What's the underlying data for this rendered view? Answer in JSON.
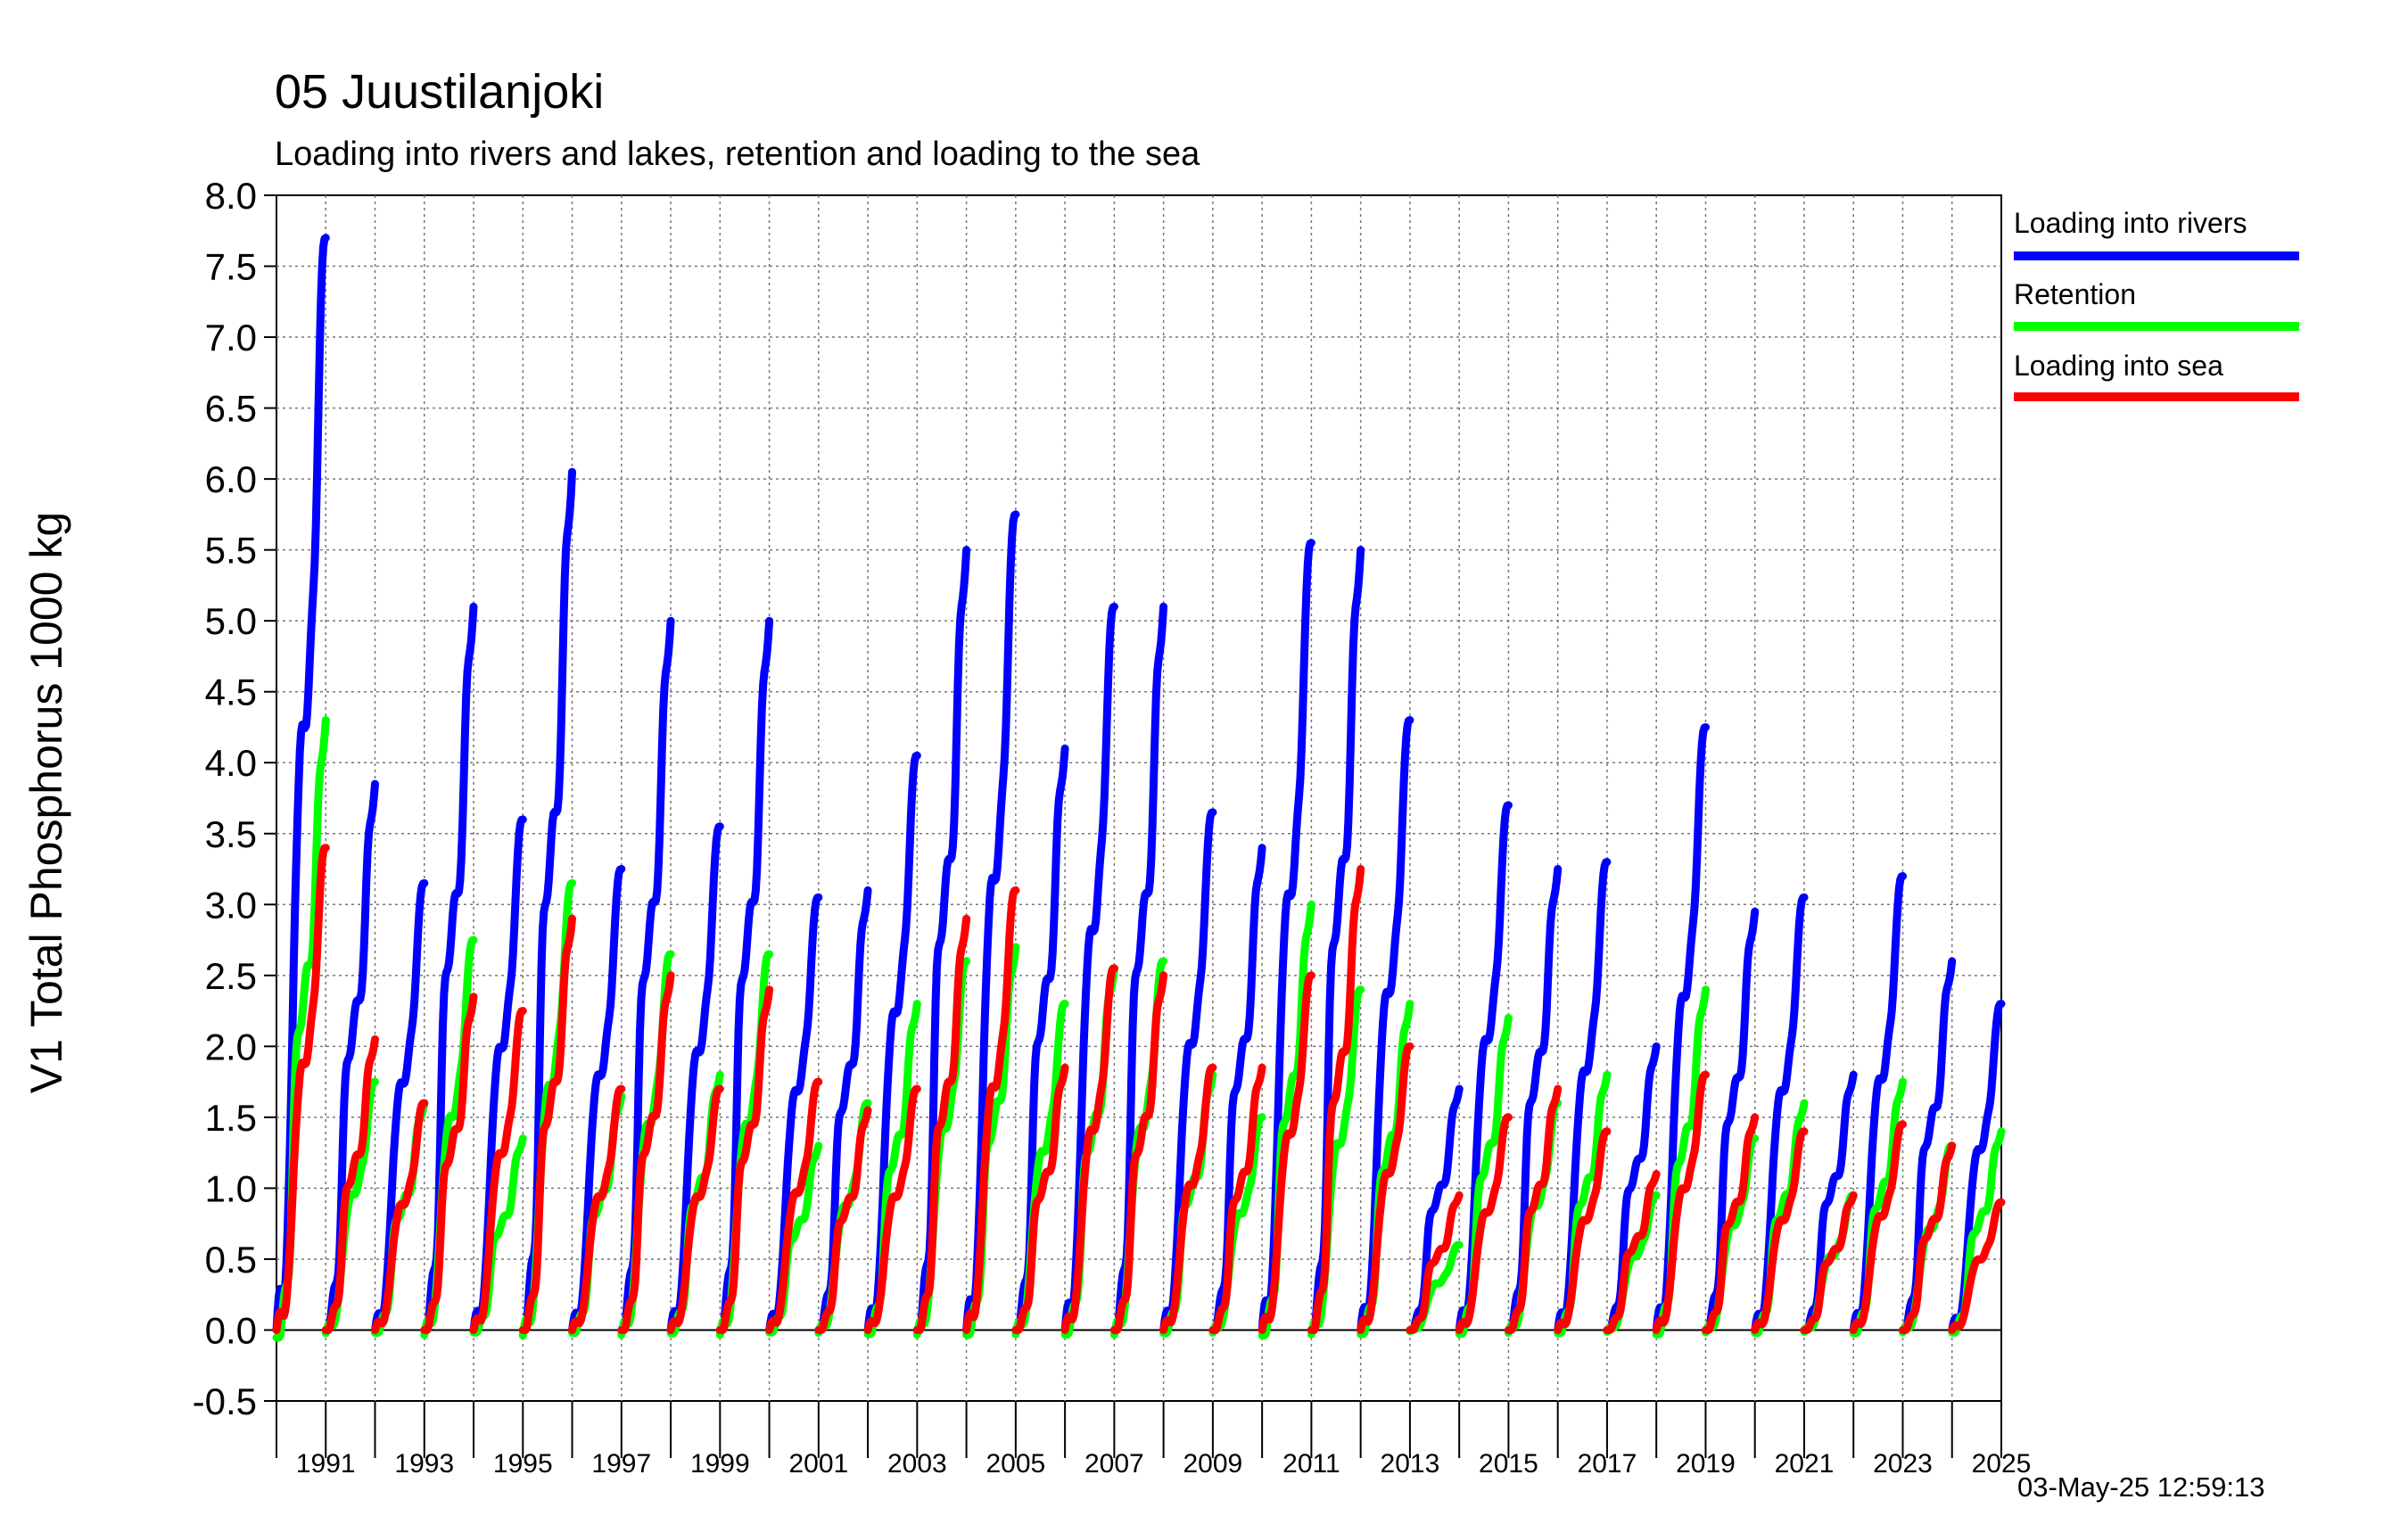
{
  "header": {
    "title": "05 Juustilanjoki",
    "subtitle": "Loading into rivers and lakes, retention and loading to the sea"
  },
  "footer": {
    "timestamp": "03-May-25 12:59:13"
  },
  "colors": {
    "rivers": "#0000ff",
    "retention": "#00ff00",
    "sea": "#ff0000",
    "grid": "#777777"
  },
  "chart_data": {
    "type": "line",
    "title": "05 Juustilanjoki",
    "subtitle": "Loading into rivers and lakes, retention and loading to the sea",
    "xlabel": "",
    "ylabel": "V1 Total Phosphorus 1000 kg",
    "xlim": [
      1990,
      2025
    ],
    "ylim": [
      -0.5,
      8.0
    ],
    "yticks": [
      -0.5,
      0.0,
      0.5,
      1.0,
      1.5,
      2.0,
      2.5,
      3.0,
      3.5,
      4.0,
      4.5,
      5.0,
      5.5,
      6.0,
      6.5,
      7.0,
      7.5,
      8.0
    ],
    "ytick_labels": [
      "-0.5",
      "0.0",
      "0.5",
      "1.0",
      "1.5",
      "2.0",
      "2.5",
      "3.0",
      "3.5",
      "4.0",
      "4.5",
      "5.0",
      "5.5",
      "6.0",
      "6.5",
      "7.0",
      "7.5",
      "8.0"
    ],
    "xtick_labels": [
      "1991",
      "1993",
      "1995",
      "1997",
      "1999",
      "2001",
      "2003",
      "2005",
      "2007",
      "2009",
      "2011",
      "2013",
      "2015",
      "2017",
      "2019",
      "2021",
      "2023",
      "2025"
    ],
    "grid": true,
    "legend_placement": "right",
    "note_x": "cumulative annual totals; x = year",
    "series": [
      {
        "name": "Loading into rivers",
        "color": "#0000ff",
        "annual_totals": [
          7.7,
          3.85,
          3.15,
          5.1,
          3.6,
          6.05,
          3.25,
          5.0,
          3.55,
          5.0,
          3.05,
          3.1,
          4.05,
          5.5,
          5.75,
          4.1,
          5.1,
          5.1,
          3.65,
          3.4,
          5.55,
          5.5,
          4.3,
          1.7,
          3.7,
          3.25,
          3.3,
          2.0,
          4.25,
          2.95,
          3.05,
          1.8,
          3.2,
          2.6,
          2.3
        ]
      },
      {
        "name": "Retention",
        "color": "#00ff00",
        "annual_totals": [
          4.3,
          1.75,
          1.6,
          2.75,
          1.35,
          3.15,
          1.65,
          2.65,
          1.8,
          2.65,
          1.3,
          1.6,
          2.3,
          2.6,
          2.7,
          2.3,
          2.55,
          2.6,
          1.8,
          1.5,
          3.0,
          2.4,
          2.3,
          0.6,
          2.2,
          1.6,
          1.8,
          0.95,
          2.4,
          1.35,
          1.6,
          0.95,
          1.75,
          1.3,
          1.4
        ]
      },
      {
        "name": "Loading into sea",
        "color": "#ff0000",
        "annual_totals": [
          3.4,
          2.05,
          1.6,
          2.35,
          2.25,
          2.9,
          1.7,
          2.5,
          1.7,
          2.4,
          1.75,
          1.55,
          1.7,
          2.9,
          3.1,
          1.85,
          2.55,
          2.5,
          1.85,
          1.85,
          2.5,
          3.25,
          2.0,
          0.95,
          1.5,
          1.7,
          1.4,
          1.1,
          1.8,
          1.5,
          1.4,
          0.95,
          1.45,
          1.3,
          0.9
        ]
      }
    ]
  }
}
